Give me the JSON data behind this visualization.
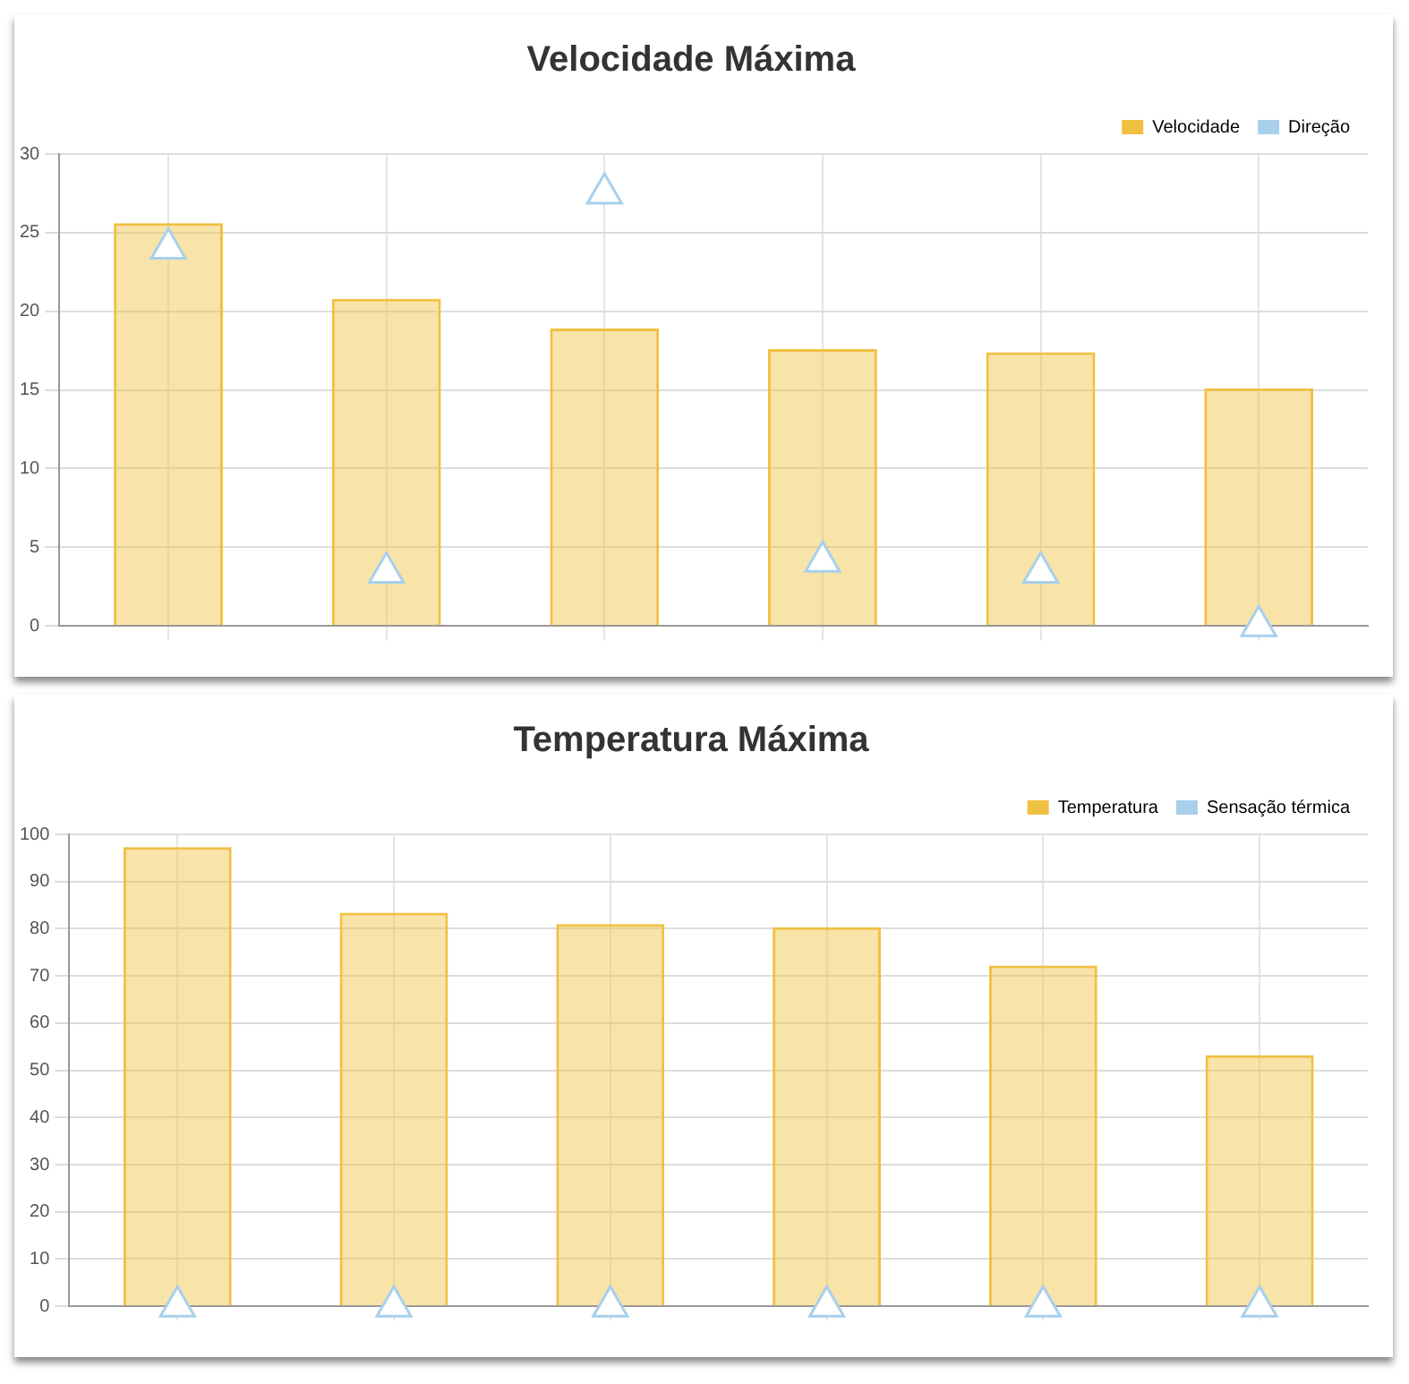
{
  "chart_data": [
    {
      "type": "bar",
      "title": "Velocidade Máxima",
      "categories": [
        null,
        null,
        null,
        null,
        null,
        null
      ],
      "series": [
        {
          "name": "Velocidade",
          "color": "#f0c040",
          "values": [
            25.6,
            20.8,
            18.9,
            17.6,
            17.4,
            15.1
          ]
        },
        {
          "name": "Direção",
          "type": "scatter",
          "color": "#a8d0ec",
          "marker": "triangle",
          "values": [
            24.0,
            3.4,
            27.5,
            4.1,
            3.4,
            0
          ]
        }
      ],
      "ylim": [
        0,
        30
      ],
      "yticks": [
        0,
        5,
        10,
        15,
        20,
        25,
        30
      ],
      "grid": true,
      "legend": "top right"
    },
    {
      "type": "bar",
      "title": "Temperatura Máxima",
      "categories": [
        null,
        null,
        null,
        null,
        null,
        null
      ],
      "series": [
        {
          "name": "Temperatura",
          "color": "#f0c040",
          "values": [
            97.3,
            83.4,
            81.0,
            80.3,
            72.2,
            53.2
          ]
        },
        {
          "name": "Sensação térmica",
          "type": "scatter",
          "color": "#a8d0ec",
          "marker": "triangle",
          "values": [
            0,
            0,
            0,
            0,
            0,
            0
          ]
        }
      ],
      "ylim": [
        0,
        100
      ],
      "yticks": [
        0,
        10,
        20,
        30,
        40,
        50,
        60,
        70,
        80,
        90,
        100
      ],
      "grid": true,
      "legend": "top right"
    }
  ]
}
